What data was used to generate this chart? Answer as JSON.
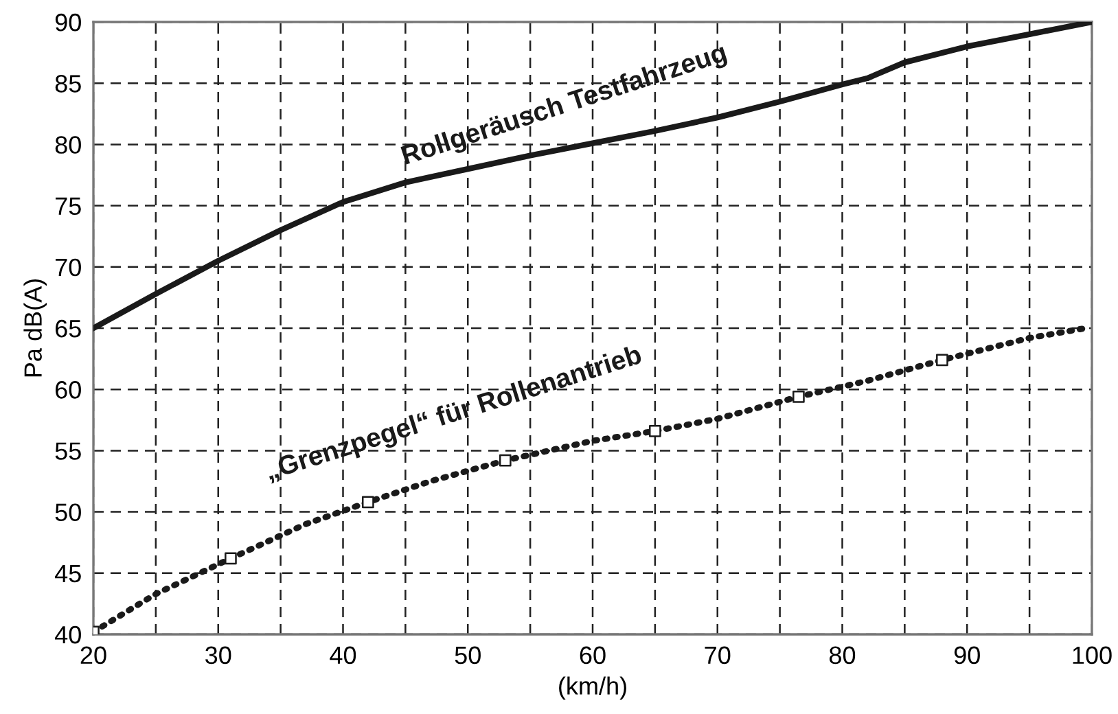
{
  "chart_data": {
    "type": "line",
    "xlabel": "(km/h)",
    "ylabel": "Pa dB(A)",
    "xlim": [
      20,
      100
    ],
    "ylim": [
      40,
      90
    ],
    "xticks": [
      20,
      {
        "value": 25,
        "label": null
      },
      30,
      {
        "value": 35,
        "label": null
      },
      40,
      {
        "value": 45,
        "label": null
      },
      50,
      {
        "value": 55,
        "label": null
      },
      60,
      {
        "value": 65,
        "label": null
      },
      70,
      {
        "value": 75,
        "label": null
      },
      80,
      {
        "value": 85,
        "label": null
      },
      90,
      {
        "value": 95,
        "label": null
      },
      100
    ],
    "yticks": [
      40,
      45,
      50,
      55,
      60,
      65,
      70,
      75,
      80,
      85,
      90
    ],
    "grid": true,
    "series": [
      {
        "color": "#1a1a1a",
        "line_style": "solid",
        "marker": "none",
        "x": [
          20,
          25,
          30,
          35,
          40,
          45,
          50,
          55,
          60,
          65,
          70,
          75,
          80,
          82,
          85,
          90,
          95,
          100
        ],
        "values": [
          65,
          67.8,
          70.5,
          73,
          75.3,
          76.9,
          78,
          79.1,
          80.1,
          81.1,
          82.2,
          83.5,
          84.9,
          85.4,
          86.7,
          88,
          89,
          90
        ]
      },
      {
        "color": "#1a1a1a",
        "line_style": "dotted",
        "marker": "none",
        "x": [
          20,
          25,
          31,
          37,
          42,
          47,
          53,
          60,
          65,
          70,
          76.5,
          82,
          88,
          95,
          99.5
        ],
        "values": [
          40.2,
          43.3,
          46.2,
          49,
          50.8,
          52.5,
          54.2,
          55.8,
          56.6,
          57.6,
          59.4,
          60.7,
          62.4,
          64.2,
          65
        ]
      },
      {
        "type": "scatter",
        "color": "#1a1a1a",
        "marker": "square",
        "x": [
          20,
          31,
          42,
          53,
          65,
          76.5,
          88
        ],
        "values": [
          40.2,
          46.2,
          50.8,
          54.2,
          56.6,
          59.4,
          62.4
        ]
      }
    ],
    "annotations": [
      {
        "text": "Rollgeräusch Testfahrzeug",
        "x": 55,
        "y": 79.1
      },
      {
        "text": "„Grenzpegel“ für Rollenantrieb",
        "x": 53,
        "y": 54.2
      }
    ]
  }
}
